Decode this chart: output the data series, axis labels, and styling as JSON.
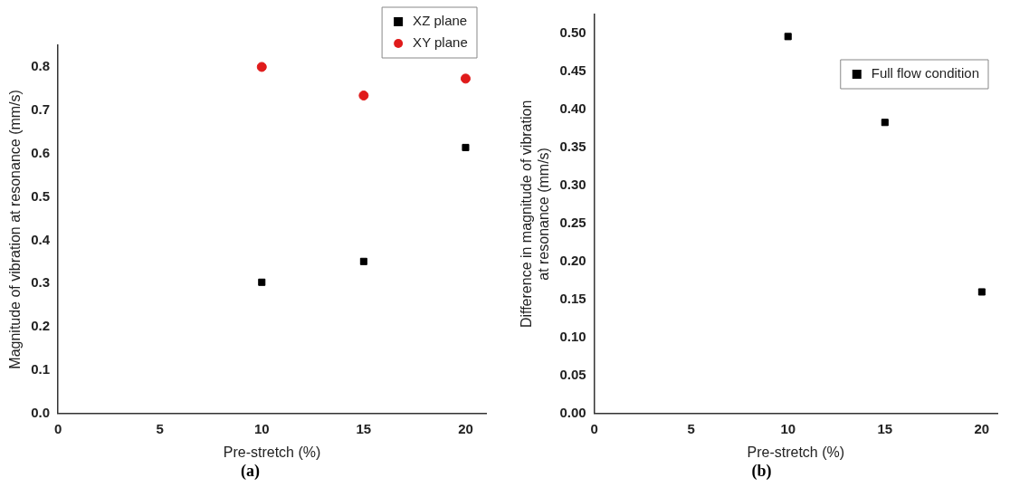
{
  "chart_data": [
    {
      "type": "scatter",
      "xlabel": "Pre-stretch (%)",
      "ylabel": "Magnitude of vibration at resonance (mm/s)",
      "x": [
        10,
        15,
        20
      ],
      "series": [
        {
          "name": "XZ plane",
          "color": "#000000",
          "marker": "square",
          "values": [
            0.303,
            0.351,
            0.614
          ]
        },
        {
          "name": "XY plane",
          "color": "#e01b1b",
          "marker": "circle",
          "values": [
            0.8,
            0.734,
            0.773
          ]
        }
      ],
      "xlim": [
        0,
        21
      ],
      "xticks": [
        0,
        5,
        10,
        15,
        20
      ],
      "ylim": [
        0,
        0.85
      ],
      "yticks": [
        {
          "value": 0,
          "label": "0.0"
        },
        0.1,
        0.2,
        0.3,
        0.4,
        0.5,
        0.6,
        0.7,
        0.8
      ],
      "legend": "top right",
      "grid": false,
      "annotations": [
        "(a)"
      ]
    },
    {
      "type": "scatter",
      "xlabel": "Pre-stretch (%)",
      "ylabel": "Difference in magnitude of vibration\nat resonance (mm/s)",
      "x": [
        10,
        15,
        20
      ],
      "series": [
        {
          "name": "Full flow condition",
          "color": "#000000",
          "marker": "square",
          "values": [
            0.496,
            0.383,
            0.16
          ]
        }
      ],
      "xlim": [
        0,
        20.8
      ],
      "xticks": [
        0,
        5,
        10,
        15,
        20
      ],
      "ylim": [
        0,
        0.525
      ],
      "yticks": [
        {
          "value": 0,
          "label": "0.00"
        },
        0.05,
        {
          "value": 0.1,
          "label": "0.10"
        },
        0.15,
        {
          "value": 0.2,
          "label": "0.20"
        },
        0.25,
        {
          "value": 0.3,
          "label": "0.30"
        },
        0.35,
        {
          "value": 0.4,
          "label": "0.40"
        },
        0.45,
        {
          "value": 0.5,
          "label": "0.50"
        }
      ],
      "legend": "top right",
      "grid": false,
      "annotations": [
        "(b)"
      ]
    }
  ]
}
